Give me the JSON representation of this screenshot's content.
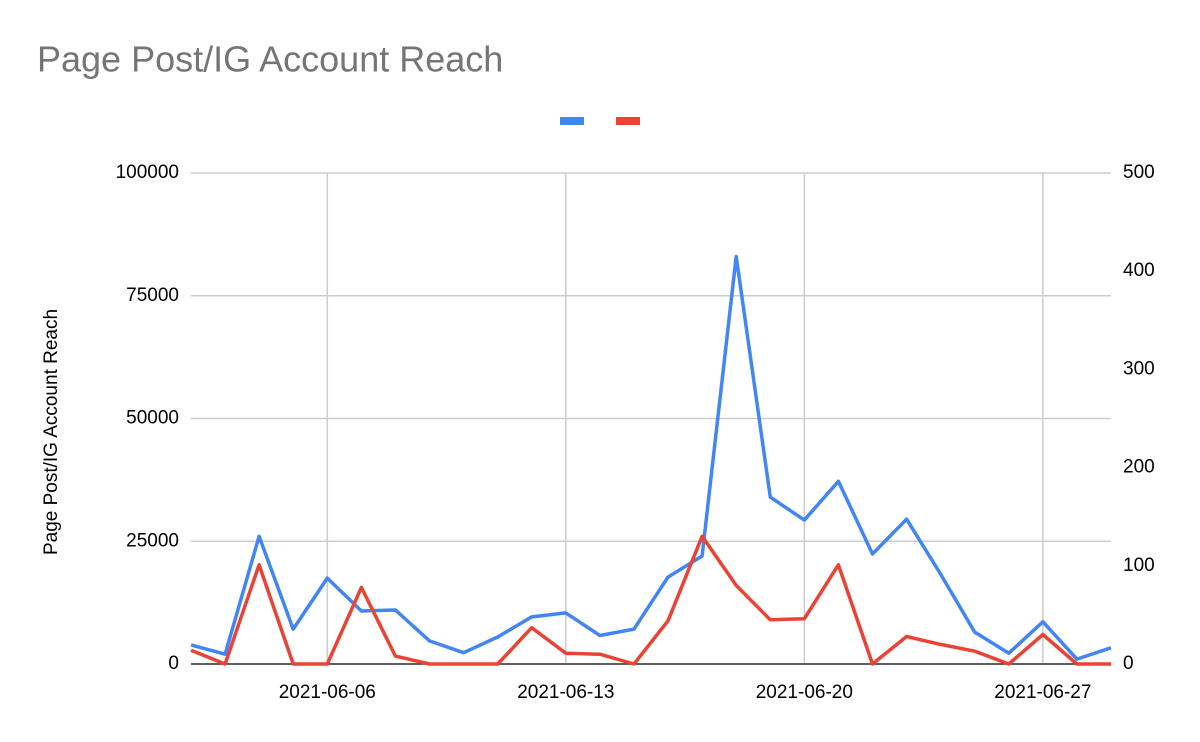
{
  "chart_data": {
    "type": "line",
    "title": "Page Post/IG Account Reach",
    "y_label": "Page Post/IG Account Reach",
    "x": [
      "2021-06-02",
      "2021-06-03",
      "2021-06-04",
      "2021-06-05",
      "2021-06-06",
      "2021-06-07",
      "2021-06-08",
      "2021-06-09",
      "2021-06-10",
      "2021-06-11",
      "2021-06-12",
      "2021-06-13",
      "2021-06-14",
      "2021-06-15",
      "2021-06-16",
      "2021-06-17",
      "2021-06-18",
      "2021-06-19",
      "2021-06-20",
      "2021-06-21",
      "2021-06-22",
      "2021-06-23",
      "2021-06-24",
      "2021-06-25",
      "2021-06-26",
      "2021-06-27",
      "2021-06-28",
      "2021-06-29"
    ],
    "xlim": [
      "2021-06-02",
      "2021-06-29"
    ],
    "xticks": [
      "2021-06-06",
      "2021-06-13",
      "2021-06-20",
      "2021-06-27"
    ],
    "ylim": [
      0,
      100000
    ],
    "yticks": [
      0,
      25000,
      50000,
      75000,
      100000
    ],
    "y2lim": [
      0,
      500
    ],
    "y2ticks": [
      0,
      100,
      200,
      300,
      400,
      500
    ],
    "grid": true,
    "legend": "top",
    "series": [
      {
        "color": "#4285f4",
        "values": [
          3900,
          2000,
          26000,
          7100,
          17500,
          10800,
          11000,
          4700,
          2300,
          5500,
          9600,
          10400,
          5800,
          7100,
          17700,
          22000,
          83000,
          34000,
          29300,
          37200,
          22400,
          29500,
          18300,
          6500,
          2200,
          8600,
          1000,
          3300
        ]
      },
      {
        "color": "#ea4335",
        "axis": "y2",
        "values": [
          14,
          0,
          101,
          0,
          0,
          78,
          8,
          0,
          0,
          0,
          37,
          11,
          10,
          0,
          44,
          130,
          80,
          45,
          46,
          101,
          0,
          28,
          20,
          13,
          0,
          30,
          0,
          0
        ]
      }
    ]
  }
}
